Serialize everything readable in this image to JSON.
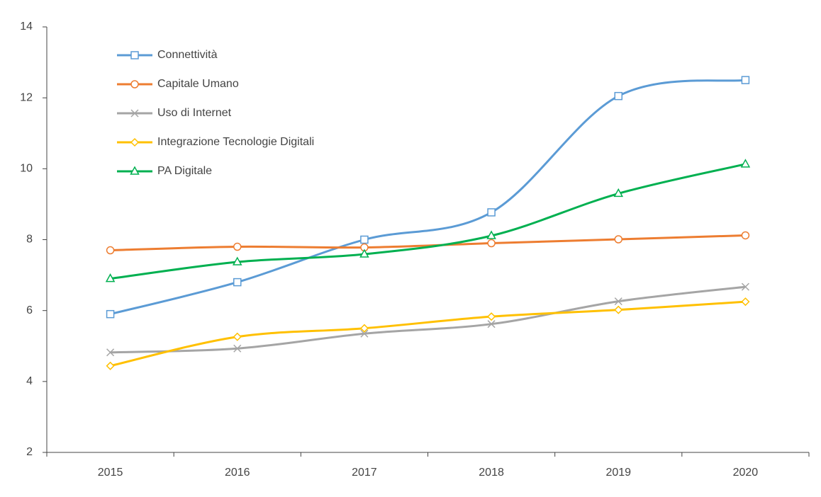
{
  "chart_data": {
    "type": "line",
    "smooth": true,
    "categories": [
      "2015",
      "2016",
      "2017",
      "2018",
      "2019",
      "2020"
    ],
    "series": [
      {
        "name": "Connettività",
        "color": "#5b9bd5",
        "marker": "square",
        "values": [
          5.9,
          6.8,
          8.0,
          8.77,
          12.05,
          12.5
        ]
      },
      {
        "name": "Capitale Umano",
        "color": "#ed7d31",
        "marker": "circle",
        "values": [
          7.7,
          7.8,
          7.78,
          7.9,
          8.01,
          8.12
        ]
      },
      {
        "name": "Uso di Internet",
        "color": "#a5a5a5",
        "marker": "x",
        "values": [
          4.82,
          4.93,
          5.35,
          5.62,
          6.26,
          6.67
        ]
      },
      {
        "name": "Integrazione Tecnologie Digitali",
        "color": "#ffc000",
        "marker": "diamond",
        "values": [
          4.44,
          5.26,
          5.5,
          5.83,
          6.02,
          6.25
        ]
      },
      {
        "name": "PA Digitale",
        "color": "#00b050",
        "marker": "triangle",
        "values": [
          6.9,
          7.37,
          7.59,
          8.11,
          9.3,
          10.13
        ]
      }
    ],
    "ylim": [
      2,
      14
    ],
    "yticks": [
      2,
      4,
      6,
      8,
      10,
      12,
      14
    ],
    "grid": false,
    "legend": "upper left"
  }
}
